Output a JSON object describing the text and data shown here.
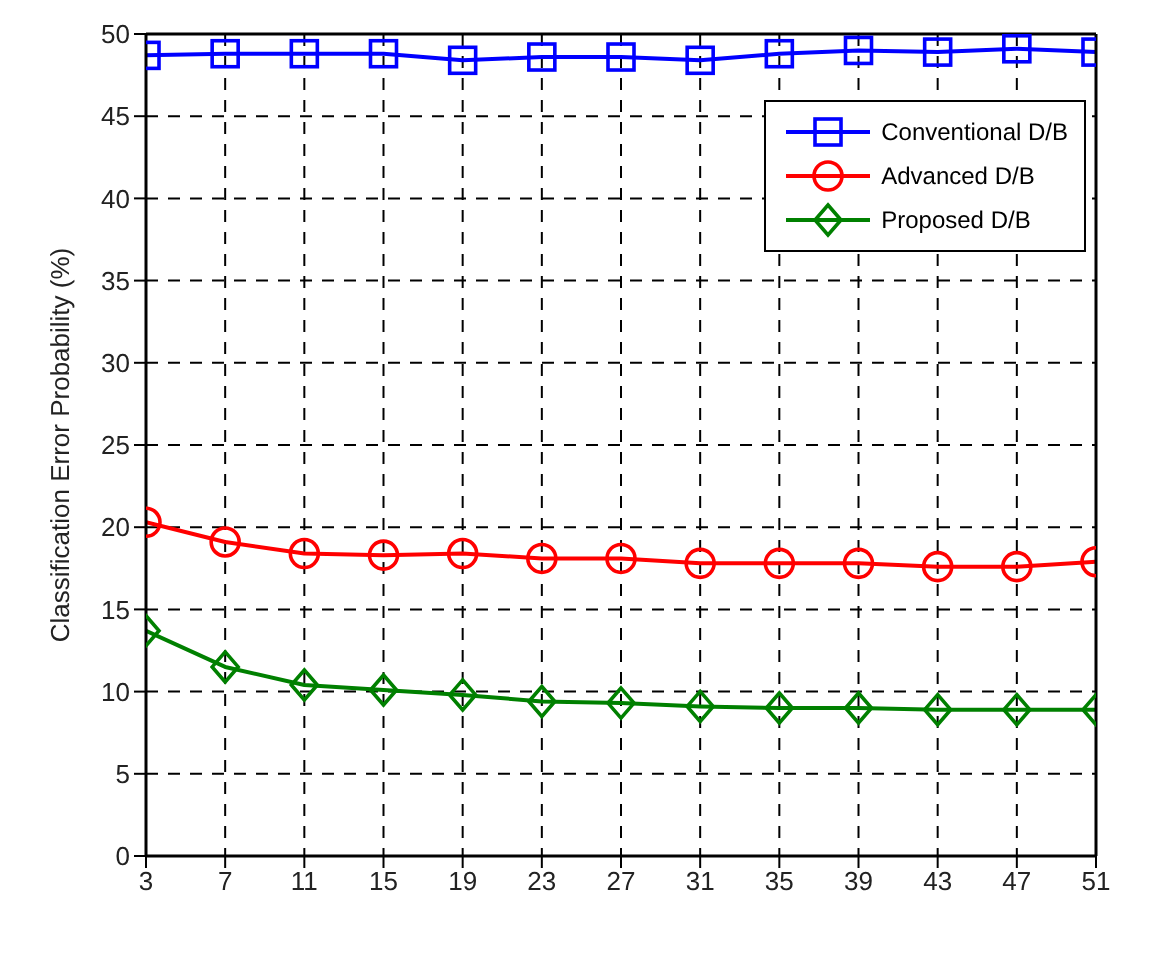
{
  "chart_data": {
    "type": "line",
    "ylabel": "Classification Error Probability (%)",
    "x": [
      3,
      7,
      11,
      15,
      19,
      23,
      27,
      31,
      35,
      39,
      43,
      47,
      51
    ],
    "xlim": [
      3,
      51
    ],
    "xticks": [
      3,
      7,
      11,
      15,
      19,
      23,
      27,
      31,
      35,
      39,
      43,
      47,
      51
    ],
    "ylim": [
      0,
      50
    ],
    "yticks": [
      0,
      5,
      10,
      15,
      20,
      25,
      30,
      35,
      40,
      45,
      50
    ],
    "grid": true,
    "legend": "top right",
    "line_style": "solid",
    "series": [
      {
        "name": "Conventional D/B",
        "color": "#0000ff",
        "marker": "square",
        "values": [
          48.7,
          48.8,
          48.8,
          48.8,
          48.4,
          48.6,
          48.6,
          48.4,
          48.8,
          49.0,
          48.9,
          49.1,
          48.9
        ]
      },
      {
        "name": "Advanced D/B",
        "color": "#ff0000",
        "marker": "circle",
        "values": [
          20.3,
          19.1,
          18.4,
          18.3,
          18.4,
          18.1,
          18.1,
          17.8,
          17.8,
          17.8,
          17.6,
          17.6,
          17.9
        ]
      },
      {
        "name": "Proposed D/B",
        "color": "#008000",
        "marker": "diamond",
        "values": [
          13.7,
          11.5,
          10.4,
          10.1,
          9.8,
          9.4,
          9.3,
          9.1,
          9.0,
          9.0,
          8.9,
          8.9,
          8.9
        ]
      }
    ]
  }
}
